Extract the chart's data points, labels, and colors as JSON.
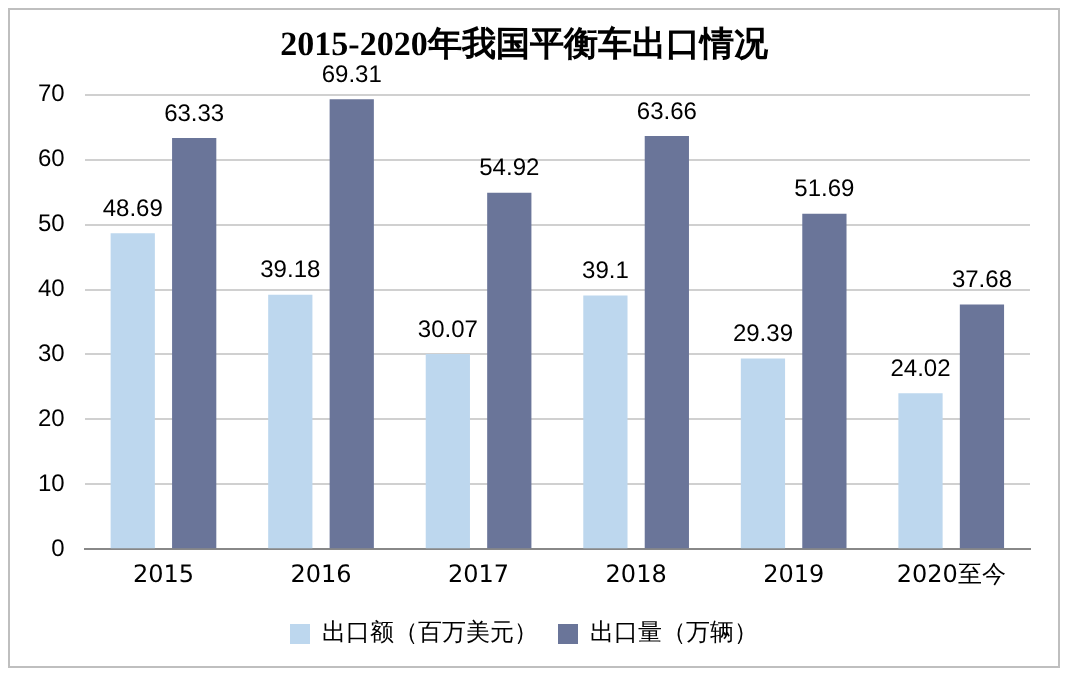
{
  "chart_data": {
    "type": "bar",
    "title": "2015-2020年我国平衡车出口情况",
    "categories": [
      "2015",
      "2016",
      "2017",
      "2018",
      "2019",
      "2020至今"
    ],
    "series": [
      {
        "name": "出口额（百万美元）",
        "color": "#bdd7ee",
        "values": [
          48.69,
          39.18,
          30.07,
          39.1,
          29.39,
          24.02
        ]
      },
      {
        "name": "出口量（万辆）",
        "color": "#6a7599",
        "values": [
          63.33,
          69.31,
          54.92,
          63.66,
          51.69,
          37.68
        ]
      }
    ],
    "ylim": [
      0,
      70
    ],
    "yticks": [
      0,
      10,
      20,
      30,
      40,
      50,
      60,
      70
    ],
    "grid": "y",
    "legend": "bottom",
    "data_labels": true
  }
}
